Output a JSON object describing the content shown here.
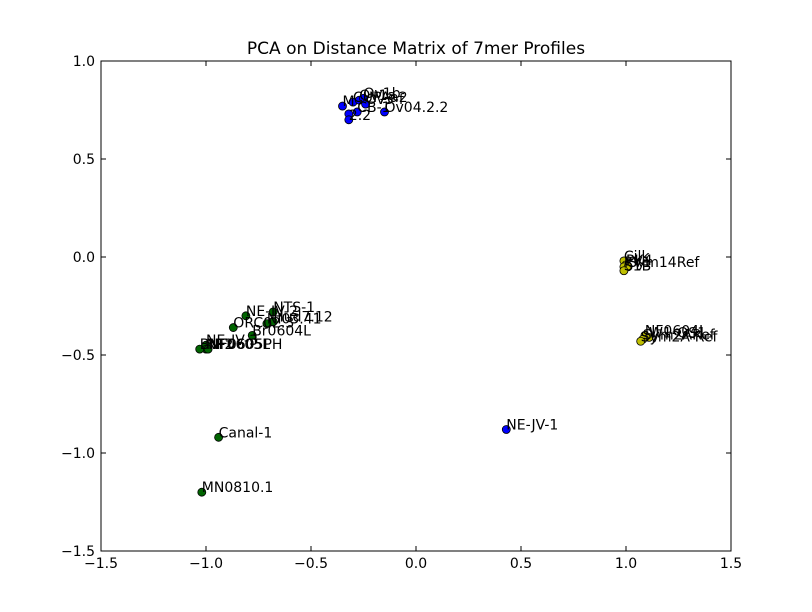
{
  "chart_data": {
    "type": "scatter",
    "title": "PCA on Distance Matrix of 7mer Profiles",
    "xlabel": "",
    "ylabel": "",
    "xlim": [
      -1.5,
      1.5
    ],
    "ylim": [
      -1.5,
      1.0
    ],
    "xticks": [
      -1.5,
      -1.0,
      -0.5,
      0.0,
      0.5,
      1.0,
      1.5
    ],
    "xtick_labels": [
      "−1.5",
      "−1.0",
      "−0.5",
      "0.0",
      "0.5",
      "1.0",
      "1.5"
    ],
    "yticks": [
      -1.5,
      -1.0,
      -0.5,
      0.0,
      0.5,
      1.0
    ],
    "ytick_labels": [
      "−1.5",
      "−1.0",
      "−0.5",
      "0.0",
      "0.5",
      "1.0"
    ],
    "grid": false,
    "colors": {
      "blue": "#0000ff",
      "green": "#006400",
      "yellow": "#bfbf00"
    },
    "points": [
      {
        "x": -0.35,
        "y": 0.77,
        "color": "blue",
        "label": "M"
      },
      {
        "x": -0.3,
        "y": 0.79,
        "color": "blue",
        "label": "CUPAa2"
      },
      {
        "x": -0.27,
        "y": 0.8,
        "color": "blue",
        "label": "Ov1a"
      },
      {
        "x": -0.25,
        "y": 0.81,
        "color": "blue",
        "label": "Ov1b"
      },
      {
        "x": -0.24,
        "y": 0.78,
        "color": "blue",
        "label": "Ov3-f"
      },
      {
        "x": -0.28,
        "y": 0.74,
        "color": "blue",
        "label": "CB-1"
      },
      {
        "x": -0.15,
        "y": 0.74,
        "color": "blue",
        "label": "Ov04.2.2"
      },
      {
        "x": -0.32,
        "y": 0.73,
        "color": "blue",
        "label": ""
      },
      {
        "x": -0.32,
        "y": 0.7,
        "color": "blue",
        "label": "2.2"
      },
      {
        "x": 0.43,
        "y": -0.88,
        "color": "blue",
        "label": "NE-JV-1"
      },
      {
        "x": -0.81,
        "y": -0.3,
        "color": "green",
        "label": "NE-JV-2"
      },
      {
        "x": -0.68,
        "y": -0.28,
        "color": "green",
        "label": "NTS-1"
      },
      {
        "x": -0.68,
        "y": -0.33,
        "color": "green",
        "label": "Hud7.12"
      },
      {
        "x": -0.71,
        "y": -0.34,
        "color": "green",
        "label": "NI03.41"
      },
      {
        "x": -0.87,
        "y": -0.36,
        "color": "green",
        "label": "ORC02.3"
      },
      {
        "x": -0.78,
        "y": -0.4,
        "color": "green",
        "label": "Br0604L"
      },
      {
        "x": -1.0,
        "y": -0.45,
        "color": "green",
        "label": "NE-JV-3"
      },
      {
        "x": -1.0,
        "y": -0.47,
        "color": "green",
        "label": "NF2"
      },
      {
        "x": -1.03,
        "y": -0.47,
        "color": "green",
        "label": "BNF0605PH"
      },
      {
        "x": -0.99,
        "y": -0.47,
        "color": "green",
        "label": "NF0605L"
      },
      {
        "x": -0.94,
        "y": -0.92,
        "color": "green",
        "label": "Canal-1"
      },
      {
        "x": -1.02,
        "y": -1.2,
        "color": "green",
        "label": "MN0810.1"
      },
      {
        "x": 0.99,
        "y": -0.02,
        "color": "yellow",
        "label": "Cilk"
      },
      {
        "x": 1.0,
        "y": -0.04,
        "color": "yellow",
        "label": "PK4"
      },
      {
        "x": 0.99,
        "y": -0.05,
        "color": "yellow",
        "label": "RV1"
      },
      {
        "x": 1.01,
        "y": -0.05,
        "color": "yellow",
        "label": "Sym14Ref"
      },
      {
        "x": 0.99,
        "y": -0.07,
        "color": "yellow",
        "label": "S1B"
      },
      {
        "x": 1.09,
        "y": -0.4,
        "color": "yellow",
        "label": "NF0604L"
      },
      {
        "x": 1.11,
        "y": -0.41,
        "color": "yellow",
        "label": "W1-OS1"
      },
      {
        "x": 1.08,
        "y": -0.42,
        "color": "yellow",
        "label": "Sym2ARef"
      },
      {
        "x": 1.07,
        "y": -0.43,
        "color": "yellow",
        "label": "Sym2A-Ref"
      }
    ]
  }
}
